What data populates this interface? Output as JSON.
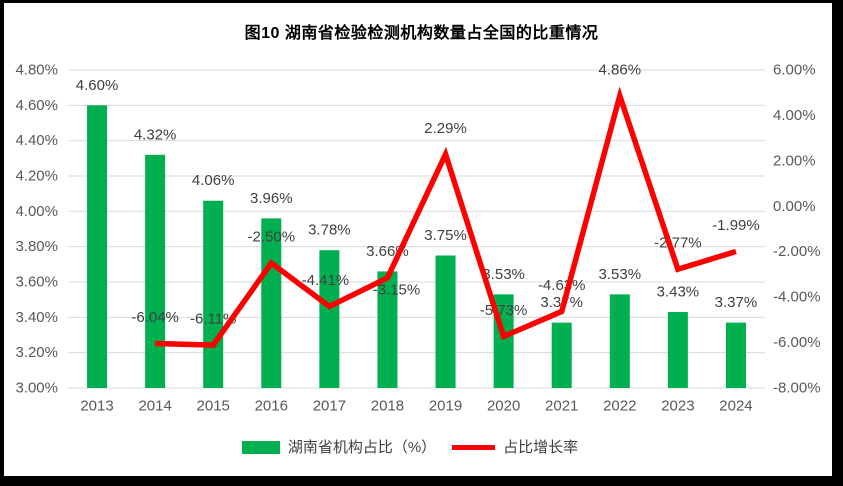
{
  "title": "图10  湖南省检验检测机构数量占全国的比重情况",
  "colors": {
    "bar": "#00B050",
    "line": "#FF0000",
    "grid": "#D9D9D9",
    "axis_text": "#595959",
    "label_text": "#404040",
    "frame": "#000000",
    "background": "#FFFFFF"
  },
  "chart_data": {
    "type": "bar",
    "subtype": "bar-and-line-combo",
    "title": "图10  湖南省检验检测机构数量占全国的比重情况",
    "categories": [
      "2013",
      "2014",
      "2015",
      "2016",
      "2017",
      "2018",
      "2019",
      "2020",
      "2021",
      "2022",
      "2023",
      "2024"
    ],
    "series": [
      {
        "name": "湖南省机构占比（%）",
        "type": "bar",
        "axis": "left",
        "color": "#00B050",
        "values": [
          4.6,
          4.32,
          4.06,
          3.96,
          3.78,
          3.66,
          3.75,
          3.53,
          3.37,
          3.53,
          3.43,
          3.37
        ],
        "labels": [
          "4.60%",
          "4.32%",
          "4.06%",
          "3.96%",
          "3.78%",
          "3.66%",
          "3.75%",
          "3.53%",
          "3.37%",
          "3.53%",
          "3.43%",
          "3.37%"
        ]
      },
      {
        "name": "占比增长率",
        "type": "line",
        "axis": "right",
        "color": "#FF0000",
        "values": [
          null,
          -6.04,
          -6.11,
          -2.5,
          -4.41,
          -3.15,
          2.29,
          -5.73,
          -4.63,
          4.86,
          -2.77,
          -1.99
        ],
        "labels": [
          null,
          "-6.04%",
          "-6.11%",
          "-2.50%",
          "-4.41%",
          "-3.15%",
          "2.29%",
          "-5.73%",
          "-4.63%",
          "4.86%",
          "-2.77%",
          "-1.99%"
        ]
      }
    ],
    "left_axis": {
      "min": 3.0,
      "max": 4.8,
      "step": 0.2,
      "tick_labels": [
        "4.80%",
        "4.60%",
        "4.40%",
        "4.20%",
        "4.00%",
        "3.80%",
        "3.60%",
        "3.40%",
        "3.20%",
        "3.00%"
      ]
    },
    "right_axis": {
      "min": -8.0,
      "max": 6.0,
      "step": 2.0,
      "tick_labels": [
        "6.00%",
        "4.00%",
        "2.00%",
        "0.00%",
        "-2.00%",
        "-4.00%",
        "-6.00%",
        "-8.00%"
      ]
    },
    "grid": "horizontal",
    "legend_position": "bottom",
    "label_layout": {
      "bar_label_dy": -20,
      "line_label_dy": -26,
      "line_label_dy_overrides": {
        "5": 12
      },
      "line_label_dx_overrides": {
        "4": -4,
        "5": 9
      }
    }
  },
  "legend": {
    "items": [
      {
        "label": "湖南省机构占比（%）",
        "color": "#00B050",
        "shape": "rect"
      },
      {
        "label": "占比增长率",
        "color": "#FF0000",
        "shape": "line"
      }
    ]
  }
}
